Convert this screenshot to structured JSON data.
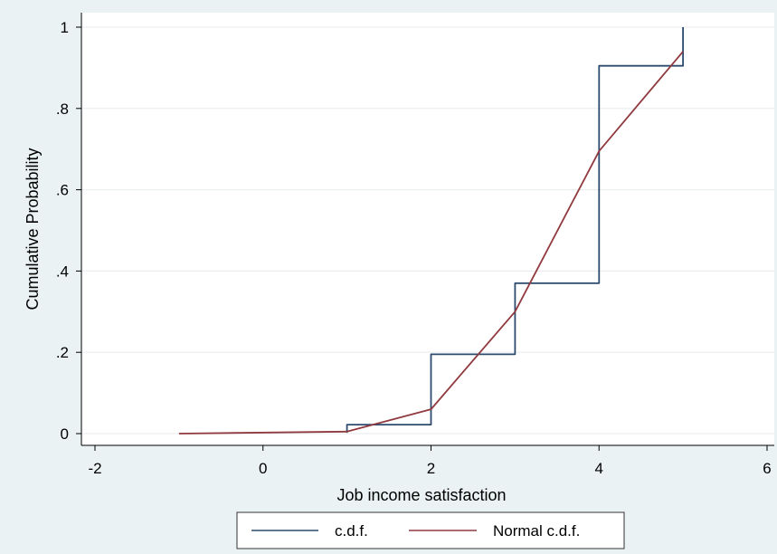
{
  "chart_data": {
    "type": "line",
    "title": "",
    "xlabel": "Job income satisfaction",
    "ylabel": "Cumulative Probability",
    "xlim": [
      -2,
      6
    ],
    "ylim": [
      0,
      1
    ],
    "x_ticks": [
      -2,
      0,
      2,
      4,
      6
    ],
    "x_tick_labels": [
      "-2",
      "0",
      "2",
      "4",
      "6"
    ],
    "y_ticks": [
      0,
      0.2,
      0.4,
      0.6,
      0.8,
      1
    ],
    "y_tick_labels": [
      "0",
      ".2",
      ".4",
      ".6",
      ".8",
      "1"
    ],
    "grid": "horizontal",
    "legend": {
      "placement": "bottom",
      "entries": [
        "c.d.f.",
        "Normal c.d.f."
      ]
    },
    "series": [
      {
        "name": "c.d.f.",
        "style": "step",
        "color": "#2d4b6e",
        "points": [
          [
            1,
            0.002
          ],
          [
            1,
            0.022
          ],
          [
            2,
            0.022
          ],
          [
            2,
            0.195
          ],
          [
            3,
            0.195
          ],
          [
            3,
            0.37
          ],
          [
            4,
            0.37
          ],
          [
            4,
            0.905
          ],
          [
            5,
            0.905
          ],
          [
            5,
            1.0
          ]
        ]
      },
      {
        "name": "Normal c.d.f.",
        "style": "line",
        "color": "#903a3f",
        "points": [
          [
            -1,
            0.0
          ],
          [
            1,
            0.005
          ],
          [
            2,
            0.06
          ],
          [
            3,
            0.3
          ],
          [
            4,
            0.695
          ],
          [
            5,
            0.94
          ]
        ]
      }
    ]
  },
  "colors": {
    "background": "#eaf2f3",
    "plot_area": "#ffffff",
    "grid": "#e9eef0"
  }
}
